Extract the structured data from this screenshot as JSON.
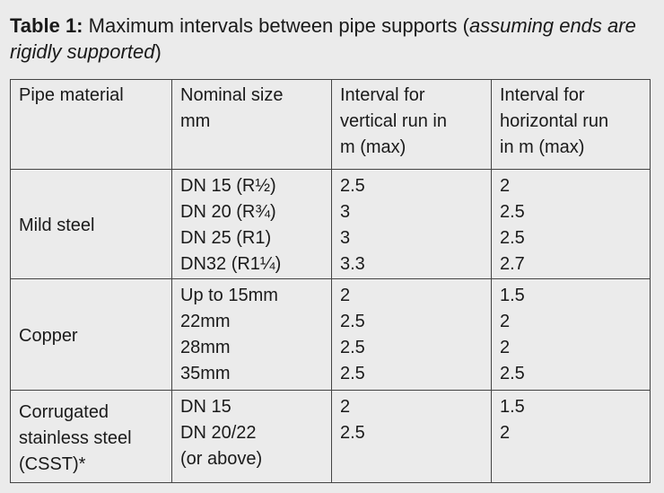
{
  "caption": {
    "label": "Table 1:",
    "text": " Maximum intervals between pipe supports (",
    "note": "assuming ends are rigidly supported",
    "close": ")"
  },
  "table": {
    "headers": [
      [
        "Pipe material"
      ],
      [
        "Nominal size",
        "mm"
      ],
      [
        "Interval for",
        "vertical run in",
        "m (max)"
      ],
      [
        "Interval for",
        "horizontal run",
        "in m (max)"
      ]
    ],
    "groups": [
      {
        "material": [
          "Mild steel"
        ],
        "sizes": [
          "DN 15 (R½)",
          "DN 20 (R¾)",
          "DN 25 (R1)",
          "DN32 (R1¼)"
        ],
        "vertical": [
          "2.5",
          "3",
          "3",
          "3.3"
        ],
        "horizontal": [
          "2",
          "2.5",
          "2.5",
          "2.7"
        ]
      },
      {
        "material": [
          "Copper"
        ],
        "sizes": [
          "Up to 15mm",
          "22mm",
          "28mm",
          "35mm"
        ],
        "vertical": [
          "2",
          "2.5",
          "2.5",
          "2.5"
        ],
        "horizontal": [
          "1.5",
          "2",
          "2",
          "2.5"
        ]
      },
      {
        "material": [
          "Corrugated",
          "stainless steel",
          "(CSST)*"
        ],
        "sizes": [
          "DN 15",
          "DN 20/22",
          "(or above)"
        ],
        "vertical": [
          "2",
          "2.5"
        ],
        "horizontal": [
          "1.5",
          "2"
        ]
      }
    ]
  }
}
